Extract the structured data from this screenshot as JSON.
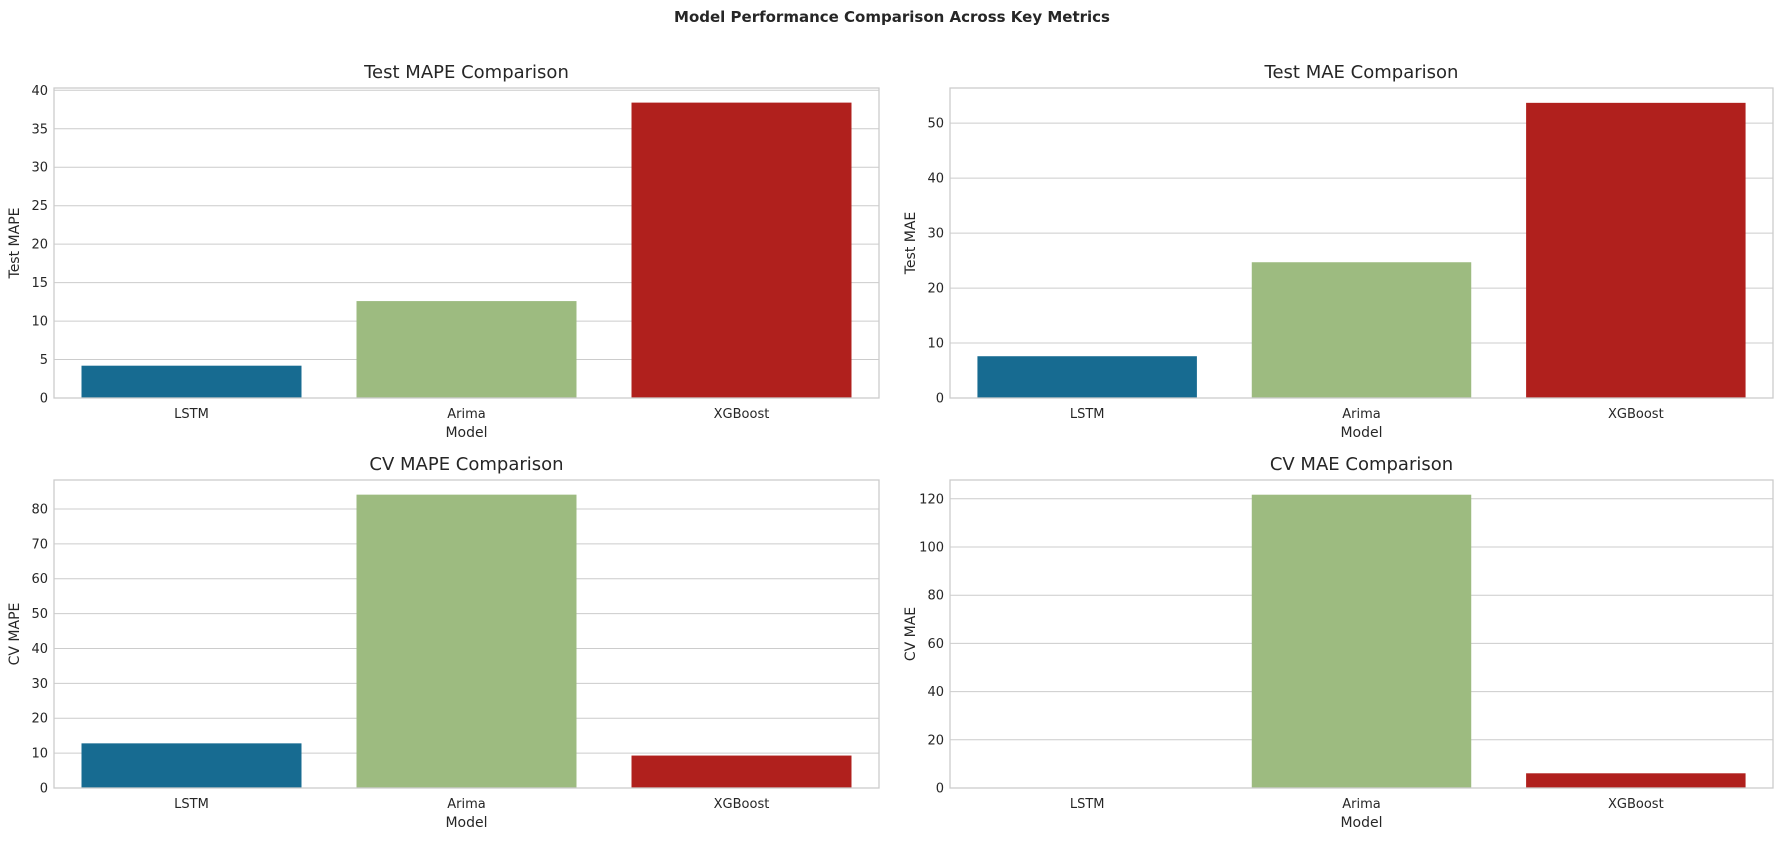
{
  "title": "Model Performance Comparison Across Key Metrics",
  "colors": {
    "LSTM": "#176b91",
    "Arima": "#9dbb80",
    "XGBoost": "#b0201d",
    "grid": "#cccccc",
    "text": "#262626"
  },
  "chart_data": [
    {
      "type": "bar",
      "title": "Test MAPE Comparison",
      "xlabel": "Model",
      "ylabel": "Test MAPE",
      "categories": [
        "LSTM",
        "Arima",
        "XGBoost"
      ],
      "values": [
        4.2,
        12.6,
        38.4
      ],
      "ylim": [
        0,
        40.3
      ],
      "yticks": [
        0,
        5,
        10,
        15,
        20,
        25,
        30,
        35,
        40
      ],
      "grid": true
    },
    {
      "type": "bar",
      "title": "Test MAE Comparison",
      "xlabel": "Model",
      "ylabel": "Test MAE",
      "categories": [
        "LSTM",
        "Arima",
        "XGBoost"
      ],
      "values": [
        7.6,
        24.7,
        53.7
      ],
      "ylim": [
        0,
        56.4
      ],
      "yticks": [
        0,
        10,
        20,
        30,
        40,
        50
      ],
      "grid": true
    },
    {
      "type": "bar",
      "title": "CV MAPE Comparison",
      "xlabel": "Model",
      "ylabel": "CV MAPE",
      "categories": [
        "LSTM",
        "Arima",
        "XGBoost"
      ],
      "values": [
        12.8,
        84.1,
        9.3
      ],
      "ylim": [
        0,
        88.3
      ],
      "yticks": [
        0,
        10,
        20,
        30,
        40,
        50,
        60,
        70,
        80
      ],
      "grid": true
    },
    {
      "type": "bar",
      "title": "CV MAE Comparison",
      "xlabel": "Model",
      "ylabel": "CV MAE",
      "categories": [
        "LSTM",
        "Arima",
        "XGBoost"
      ],
      "values": [
        0.1,
        121.7,
        6.1
      ],
      "ylim": [
        0,
        127.8
      ],
      "yticks": [
        0,
        20,
        40,
        60,
        80,
        100,
        120
      ],
      "grid": true
    }
  ]
}
